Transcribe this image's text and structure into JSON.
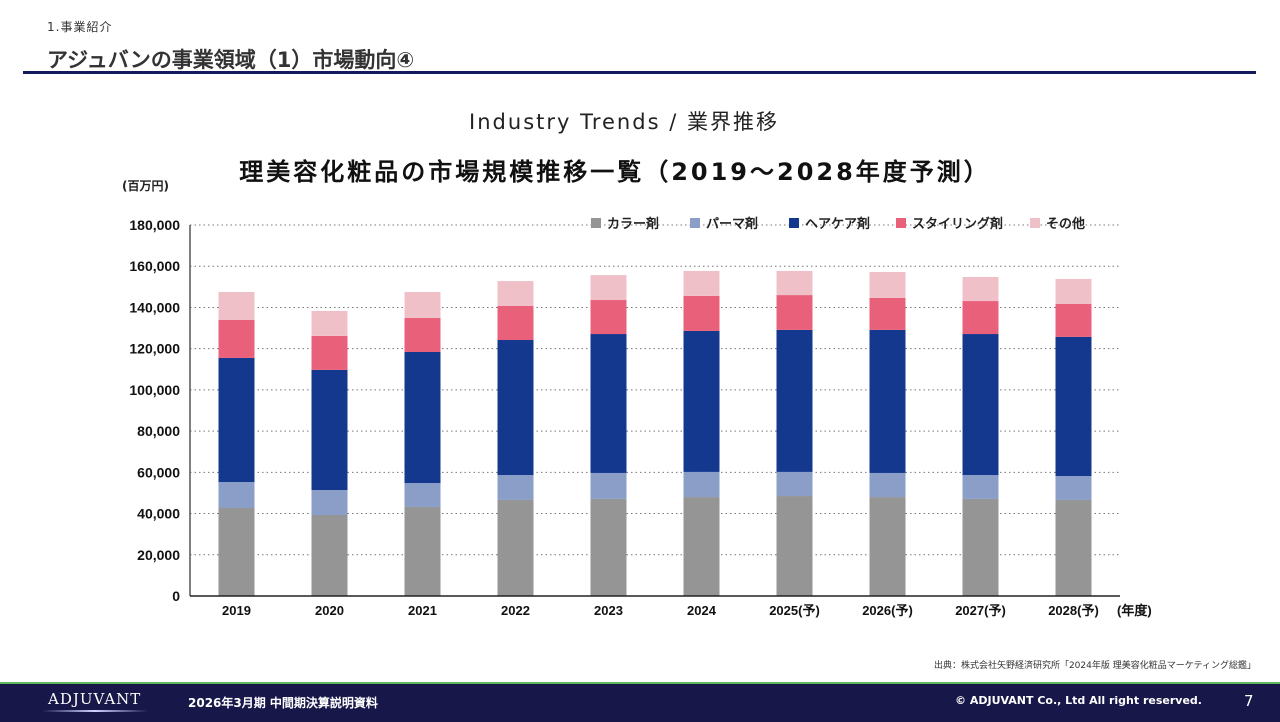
{
  "header": {
    "section": "1.事業紹介",
    "title": "アジュバンの事業領域（1）市場動向④"
  },
  "subtitle": "Industry Trends / 業界推移",
  "chart_data": {
    "type": "bar",
    "stacked": true,
    "title": "理美容化粧品の市場規模推移一覧（2019～2028年度予測）",
    "ylabel": "(百万円)",
    "xlabel": "(年度)",
    "ylim": [
      0,
      180000
    ],
    "yticks": [
      0,
      20000,
      40000,
      60000,
      80000,
      100000,
      120000,
      140000,
      160000,
      180000
    ],
    "ytick_labels": [
      "0",
      "20,000",
      "40,000",
      "60,000",
      "80,000",
      "100,000",
      "120,000",
      "140,000",
      "160,000",
      "180,000"
    ],
    "grid": "horizontal dotted",
    "legend_position": "top-right",
    "categories": [
      "2019",
      "2020",
      "2021",
      "2022",
      "2023",
      "2024",
      "2025(予)",
      "2026(予)",
      "2027(予)",
      "2028(予)"
    ],
    "series": [
      {
        "name": "カラー剤",
        "color": "#959595",
        "values": [
          42700,
          39300,
          43200,
          46600,
          47100,
          48000,
          48500,
          48000,
          47100,
          46600
        ]
      },
      {
        "name": "パーマ剤",
        "color": "#8a9ec8",
        "values": [
          12600,
          12100,
          11600,
          12100,
          12600,
          12200,
          11700,
          11700,
          11600,
          11600
        ]
      },
      {
        "name": "ヘアケア剤",
        "color": "#14388e",
        "values": [
          60200,
          58300,
          63600,
          65500,
          67400,
          68400,
          68900,
          69400,
          68400,
          67500
        ]
      },
      {
        "name": "スタイリング剤",
        "color": "#e8607a",
        "values": [
          18400,
          16500,
          16500,
          16500,
          16500,
          17000,
          16900,
          15500,
          16000,
          16000
        ]
      },
      {
        "name": "その他",
        "color": "#f0c0c8",
        "values": [
          13600,
          12100,
          12600,
          12100,
          12100,
          12100,
          11700,
          12600,
          11700,
          12100
        ]
      }
    ]
  },
  "source": "出典：株式会社矢野経済研究所「2024年版 理美容化粧品マーケティング総鑑」",
  "footer": {
    "logo": "ADJUVANT",
    "doc_name": "2026年3月期 中間期決算説明資料",
    "copyright": "© ADJUVANT Co., Ltd All right reserved.",
    "page": "7"
  },
  "colors": {
    "navy": "#131a5e",
    "footer_bg": "#17174a",
    "footer_accent": "#5fb85a"
  }
}
